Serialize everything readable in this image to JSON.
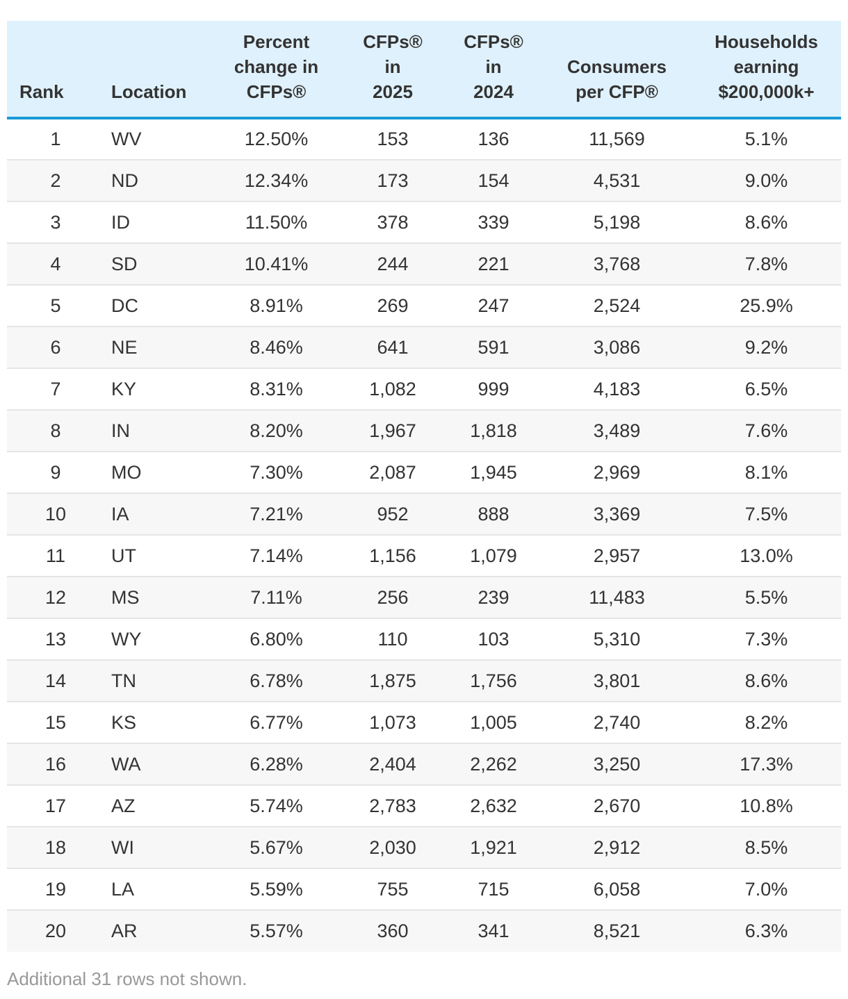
{
  "table": {
    "columns": [
      {
        "key": "rank",
        "label_lines": [
          "Rank"
        ]
      },
      {
        "key": "location",
        "label_lines": [
          "Location"
        ]
      },
      {
        "key": "pct_change",
        "label_lines": [
          "Percent",
          "change in",
          "CFPs®"
        ]
      },
      {
        "key": "cfps_2025",
        "label_lines": [
          "CFPs®",
          "in",
          "2025"
        ]
      },
      {
        "key": "cfps_2024",
        "label_lines": [
          "CFPs®",
          "in",
          "2024"
        ]
      },
      {
        "key": "consumers_per_cfp",
        "label_lines": [
          "Consumers",
          "per CFP®"
        ]
      },
      {
        "key": "households_200k",
        "label_lines": [
          "Households",
          "earning",
          "$200,000k+"
        ]
      }
    ],
    "rows": [
      [
        "1",
        "WV",
        "12.50%",
        "153",
        "136",
        "11,569",
        "5.1%"
      ],
      [
        "2",
        "ND",
        "12.34%",
        "173",
        "154",
        "4,531",
        "9.0%"
      ],
      [
        "3",
        "ID",
        "11.50%",
        "378",
        "339",
        "5,198",
        "8.6%"
      ],
      [
        "4",
        "SD",
        "10.41%",
        "244",
        "221",
        "3,768",
        "7.8%"
      ],
      [
        "5",
        "DC",
        "8.91%",
        "269",
        "247",
        "2,524",
        "25.9%"
      ],
      [
        "6",
        "NE",
        "8.46%",
        "641",
        "591",
        "3,086",
        "9.2%"
      ],
      [
        "7",
        "KY",
        "8.31%",
        "1,082",
        "999",
        "4,183",
        "6.5%"
      ],
      [
        "8",
        "IN",
        "8.20%",
        "1,967",
        "1,818",
        "3,489",
        "7.6%"
      ],
      [
        "9",
        "MO",
        "7.30%",
        "2,087",
        "1,945",
        "2,969",
        "8.1%"
      ],
      [
        "10",
        "IA",
        "7.21%",
        "952",
        "888",
        "3,369",
        "7.5%"
      ],
      [
        "11",
        "UT",
        "7.14%",
        "1,156",
        "1,079",
        "2,957",
        "13.0%"
      ],
      [
        "12",
        "MS",
        "7.11%",
        "256",
        "239",
        "11,483",
        "5.5%"
      ],
      [
        "13",
        "WY",
        "6.80%",
        "110",
        "103",
        "5,310",
        "7.3%"
      ],
      [
        "14",
        "TN",
        "6.78%",
        "1,875",
        "1,756",
        "3,801",
        "8.6%"
      ],
      [
        "15",
        "KS",
        "6.77%",
        "1,073",
        "1,005",
        "2,740",
        "8.2%"
      ],
      [
        "16",
        "WA",
        "6.28%",
        "2,404",
        "2,262",
        "3,250",
        "17.3%"
      ],
      [
        "17",
        "AZ",
        "5.74%",
        "2,783",
        "2,632",
        "2,670",
        "10.8%"
      ],
      [
        "18",
        "WI",
        "5.67%",
        "2,030",
        "1,921",
        "2,912",
        "8.5%"
      ],
      [
        "19",
        "LA",
        "5.59%",
        "755",
        "715",
        "6,058",
        "7.0%"
      ],
      [
        "20",
        "AR",
        "5.57%",
        "360",
        "341",
        "8,521",
        "6.3%"
      ]
    ],
    "footnote": "Additional 31 rows not shown."
  },
  "colors": {
    "header_background": "#dff1fc",
    "header_rule": "#1a9ad6",
    "stripe": "#f7f7f7",
    "footnote_text": "#999999"
  }
}
